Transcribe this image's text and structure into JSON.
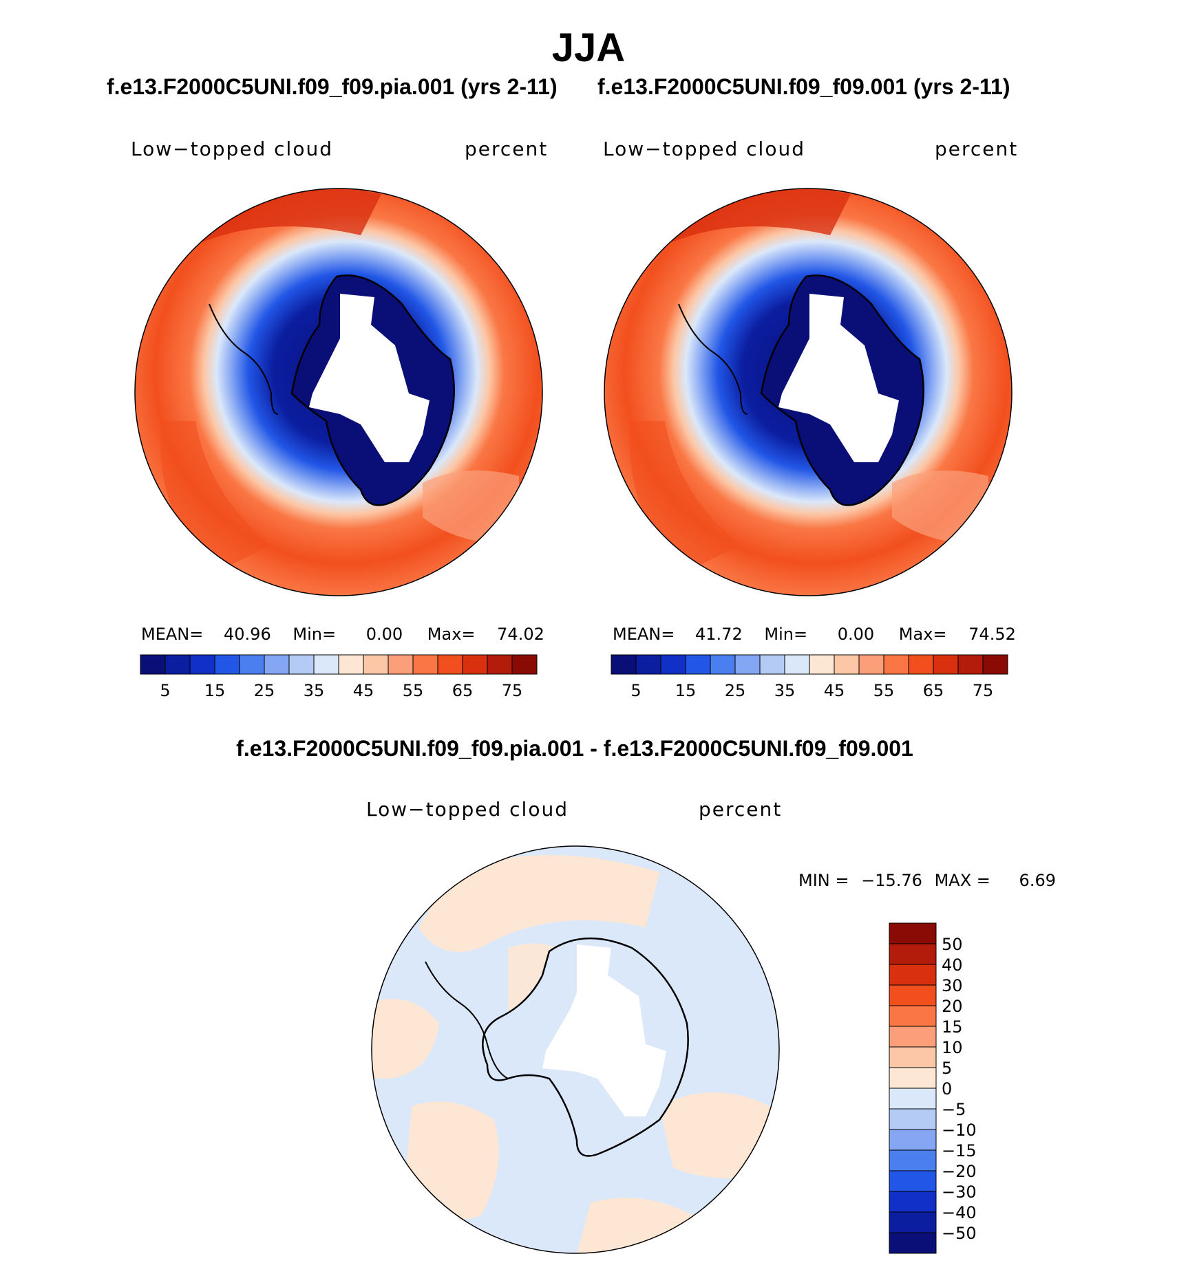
{
  "title": "JJA",
  "panels": [
    {
      "case": "f.e13.F2000C5UNI.f09_f09.pia.001 (yrs 2-11)",
      "variable": "Low−topped cloud",
      "units": "percent",
      "mean_label": "MEAN=",
      "mean": "40.96",
      "min_label": "Min=",
      "min": "0.00",
      "max_label": "Max=",
      "max": "74.02"
    },
    {
      "case": "f.e13.F2000C5UNI.f09_f09.001 (yrs 2-11)",
      "variable": "Low−topped cloud",
      "units": "percent",
      "mean_label": "MEAN=",
      "mean": "41.72",
      "min_label": "Min=",
      "min": "0.00",
      "max_label": "Max=",
      "max": "74.52"
    }
  ],
  "colorbar": {
    "tick_labels": [
      "5",
      "15",
      "25",
      "35",
      "45",
      "55",
      "65",
      "75"
    ],
    "colors": [
      "#0a0f78",
      "#0b1ea0",
      "#1130c8",
      "#2156e6",
      "#4b7ff0",
      "#85a6f3",
      "#b3cbf5",
      "#dbe8fa",
      "#fde7d4",
      "#fcc7a6",
      "#fb9f7a",
      "#fa7745",
      "#f24f1e",
      "#d93010",
      "#b31c0a",
      "#8a0a05"
    ]
  },
  "difference": {
    "title": "f.e13.F2000C5UNI.f09_f09.pia.001 - f.e13.F2000C5UNI.f09_f09.001",
    "variable": "Low−topped cloud",
    "units": "percent",
    "min_label": "MIN =",
    "min": "−15.76",
    "max_label": "MAX =",
    "max": "6.69",
    "levels": [
      "50",
      "40",
      "30",
      "20",
      "15",
      "10",
      "5",
      "0",
      "−5",
      "−10",
      "−15",
      "−20",
      "−30",
      "−40",
      "−50"
    ],
    "colors": [
      "#8a0a05",
      "#b31c0a",
      "#d93010",
      "#f24f1e",
      "#fa7745",
      "#fb9f7a",
      "#fcc7a6",
      "#fde7d4",
      "#dbe8fa",
      "#b3cbf5",
      "#85a6f3",
      "#4b7ff0",
      "#2156e6",
      "#1130c8",
      "#0b1ea0",
      "#0a0f78"
    ]
  }
}
